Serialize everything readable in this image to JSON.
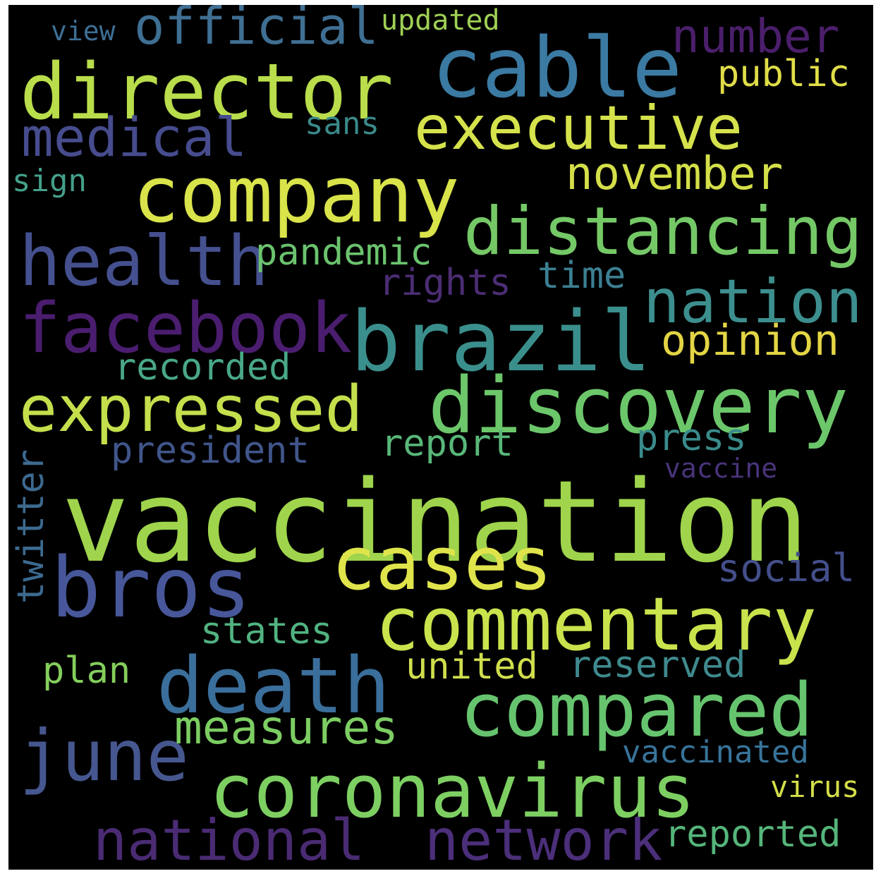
{
  "words": [
    {
      "text": "vaccination",
      "color": "#9fd44c"
    },
    {
      "text": "brazil",
      "color": "#3a8f8c"
    },
    {
      "text": "company",
      "color": "#d9e34a"
    },
    {
      "text": "director",
      "color": "#b9dd4b"
    },
    {
      "text": "cable",
      "color": "#3b7aa2"
    },
    {
      "text": "commentary",
      "color": "#c9e34d"
    },
    {
      "text": "discovery",
      "color": "#6cc76a"
    },
    {
      "text": "death",
      "color": "#3a6e9b"
    },
    {
      "text": "coronavirus",
      "color": "#7dcf62"
    },
    {
      "text": "compared",
      "color": "#66c46e"
    },
    {
      "text": "bros",
      "color": "#47579a"
    },
    {
      "text": "cases",
      "color": "#e0e44b"
    },
    {
      "text": "executive",
      "color": "#d5e24c"
    },
    {
      "text": "distancing",
      "color": "#74c866"
    },
    {
      "text": "expressed",
      "color": "#c4df4c"
    },
    {
      "text": "health",
      "color": "#45508f"
    },
    {
      "text": "facebook",
      "color": "#4a1d6f"
    },
    {
      "text": "nation",
      "color": "#3d8e8e"
    },
    {
      "text": "june",
      "color": "#46578f"
    },
    {
      "text": "national",
      "color": "#4a2b73"
    },
    {
      "text": "network",
      "color": "#4b2f7a"
    },
    {
      "text": "medical",
      "color": "#464c8d"
    },
    {
      "text": "official",
      "color": "#3f6f93"
    },
    {
      "text": "number",
      "color": "#4b1f6b"
    },
    {
      "text": "november",
      "color": "#d4df49"
    },
    {
      "text": "measures",
      "color": "#7ccd62"
    },
    {
      "text": "opinion",
      "color": "#e3d545"
    },
    {
      "text": "public",
      "color": "#e0dd48"
    },
    {
      "text": "pandemic",
      "color": "#6bc36e"
    },
    {
      "text": "president",
      "color": "#40558a"
    },
    {
      "text": "report",
      "color": "#58b779"
    },
    {
      "text": "press",
      "color": "#3a8b8b"
    },
    {
      "text": "recorded",
      "color": "#49a886"
    },
    {
      "text": "rights",
      "color": "#4c2d74"
    },
    {
      "text": "time",
      "color": "#3c7f92"
    },
    {
      "text": "social",
      "color": "#434f8a"
    },
    {
      "text": "states",
      "color": "#51b381"
    },
    {
      "text": "united",
      "color": "#cfde4d"
    },
    {
      "text": "reserved",
      "color": "#3f8a8e"
    },
    {
      "text": "plan",
      "color": "#84ce5c"
    },
    {
      "text": "reported",
      "color": "#55b57a"
    },
    {
      "text": "vaccinated",
      "color": "#38749a"
    },
    {
      "text": "virus",
      "color": "#d4df49"
    },
    {
      "text": "twitter",
      "color": "#3c6a90"
    },
    {
      "text": "sans",
      "color": "#3b8a8b"
    },
    {
      "text": "sign",
      "color": "#44a08a"
    },
    {
      "text": "view",
      "color": "#3d6f95"
    },
    {
      "text": "updated",
      "color": "#9fd054"
    },
    {
      "text": "vaccine",
      "color": "#4a347c"
    }
  ]
}
